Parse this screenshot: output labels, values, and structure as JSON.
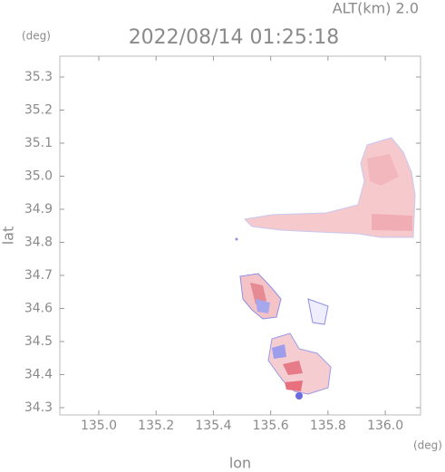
{
  "chart_data": {
    "type": "heatmap",
    "title": "2022/08/14 01:25:18",
    "subtitle": "ALT(km) 2.0",
    "x_label": "lon",
    "y_label": "lat",
    "x_unit": "(deg)",
    "y_unit": "(deg)",
    "xlim": [
      134.864,
      136.123
    ],
    "ylim": [
      34.278,
      35.363
    ],
    "xticks": [
      {
        "value": 135,
        "label": "135.0"
      },
      135.2,
      135.4,
      135.6,
      135.8,
      {
        "value": 136,
        "label": "136.0"
      }
    ],
    "yticks": [
      34.3,
      34.4,
      34.5,
      34.6,
      34.7,
      34.8,
      34.9,
      {
        "value": 35,
        "label": "35.0"
      },
      35.1,
      35.2,
      35.3
    ]
  }
}
